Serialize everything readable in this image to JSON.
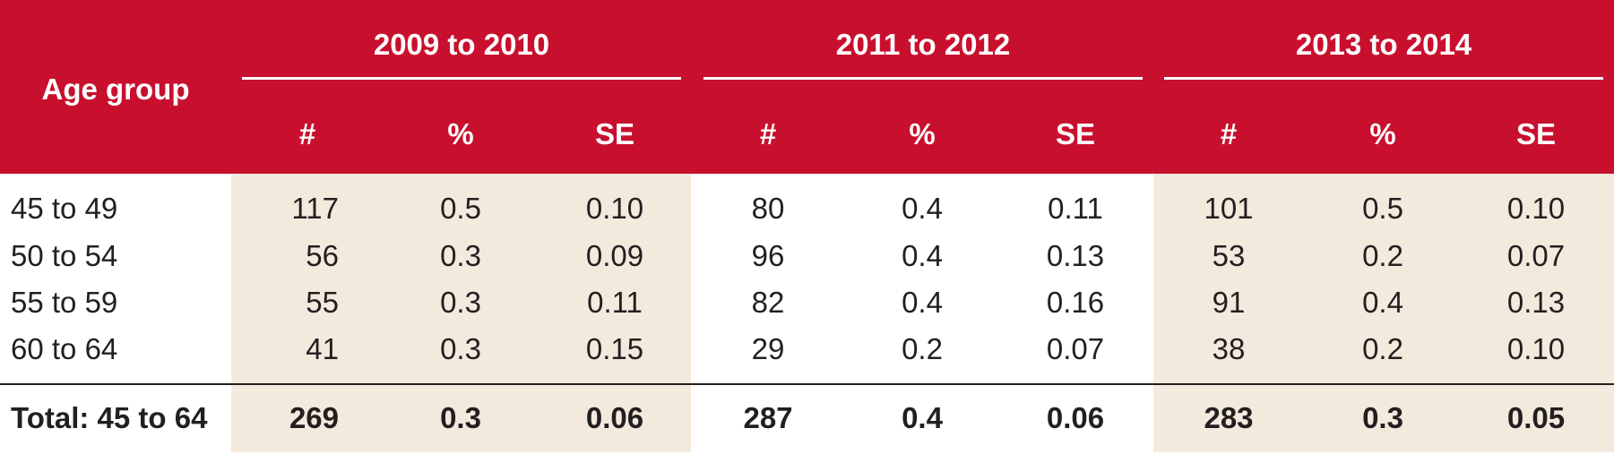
{
  "table": {
    "row_header": "Age group",
    "year_groups": [
      "2009 to 2010",
      "2011 to 2012",
      "2013 to 2014"
    ],
    "sub_columns": [
      "#",
      "%",
      "SE"
    ],
    "rows": [
      {
        "label": "45 to 49",
        "values": [
          "117",
          "0.5",
          "0.10",
          "80",
          "0.4",
          "0.11",
          "101",
          "0.5",
          "0.10"
        ]
      },
      {
        "label": "50 to 54",
        "values": [
          "56",
          "0.3",
          "0.09",
          "96",
          "0.4",
          "0.13",
          "53",
          "0.2",
          "0.07"
        ]
      },
      {
        "label": "55 to 59",
        "values": [
          "55",
          "0.3",
          "0.11",
          "82",
          "0.4",
          "0.16",
          "91",
          "0.4",
          "0.13"
        ]
      },
      {
        "label": "60 to 64",
        "values": [
          "41",
          "0.3",
          "0.15",
          "29",
          "0.2",
          "0.07",
          "38",
          "0.2",
          "0.10"
        ]
      }
    ],
    "total": {
      "label": "Total: 45 to 64",
      "values": [
        "269",
        "0.3",
        "0.06",
        "287",
        "0.4",
        "0.06",
        "283",
        "0.3",
        "0.05"
      ]
    }
  },
  "colors": {
    "header_bg": "#c8102e",
    "header_text": "#ffffff",
    "shade": "#f3eadd",
    "text": "#231f20"
  }
}
